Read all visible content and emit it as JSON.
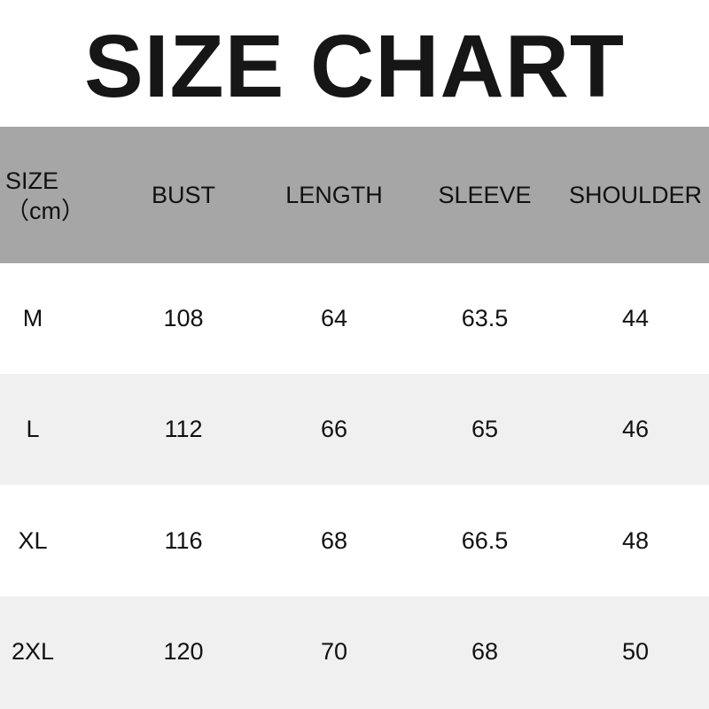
{
  "title": "SIZE CHART",
  "header": {
    "size_label": "SIZE",
    "unit_label": "（cm）",
    "columns": [
      "BUST",
      "LENGTH",
      "SLEEVE",
      "SHOULDER"
    ]
  },
  "colors": {
    "header_bg": "#a6a6a6",
    "alt_row_bg": "#f0f0f0"
  },
  "rows": [
    {
      "size": "M",
      "values": [
        "108",
        "64",
        "63.5",
        "44"
      ]
    },
    {
      "size": "L",
      "values": [
        "112",
        "66",
        "65",
        "46"
      ]
    },
    {
      "size": "XL",
      "values": [
        "116",
        "68",
        "66.5",
        "48"
      ]
    },
    {
      "size": "2XL",
      "values": [
        "120",
        "70",
        "68",
        "50"
      ]
    }
  ]
}
